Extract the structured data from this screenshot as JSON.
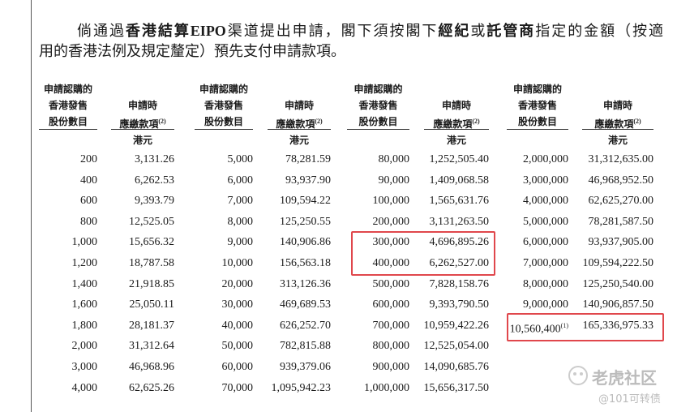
{
  "intro": {
    "lines": [
      [
        {
          "text": "倘通過",
          "bold": false
        },
        {
          "text": "香港結算EIPO",
          "bold": true
        },
        {
          "text": "渠道提出申請，閣下須按閣下",
          "bold": false
        },
        {
          "text": "經紀",
          "bold": true
        },
        {
          "text": "或",
          "bold": false
        },
        {
          "text": "託管商",
          "bold": true
        },
        {
          "text": "指定的金額（按適",
          "bold": false
        }
      ],
      [
        {
          "text": "用的香港法例及規定釐定）預先支付申請款項。",
          "bold": false
        }
      ]
    ]
  },
  "table": {
    "header_shares": [
      "申請認購的",
      "香港發售",
      "股份數目"
    ],
    "header_amount": [
      "申請時",
      "應繳款項"
    ],
    "amount_note": "(2)",
    "unit": "港元",
    "groups": [
      {
        "rows": [
          [
            "200",
            "3,131.26"
          ],
          [
            "400",
            "6,262.53"
          ],
          [
            "600",
            "9,393.79"
          ],
          [
            "800",
            "12,525.05"
          ],
          [
            "1,000",
            "15,656.32"
          ],
          [
            "1,200",
            "18,787.58"
          ],
          [
            "1,400",
            "21,918.85"
          ],
          [
            "1,600",
            "25,050.11"
          ],
          [
            "1,800",
            "28,181.37"
          ],
          [
            "2,000",
            "31,312.64"
          ],
          [
            "3,000",
            "46,968.96"
          ],
          [
            "4,000",
            "62,625.26"
          ]
        ]
      },
      {
        "rows": [
          [
            "5,000",
            "78,281.59"
          ],
          [
            "6,000",
            "93,937.90"
          ],
          [
            "7,000",
            "109,594.22"
          ],
          [
            "8,000",
            "125,250.55"
          ],
          [
            "9,000",
            "140,906.86"
          ],
          [
            "10,000",
            "156,563.18"
          ],
          [
            "20,000",
            "313,126.36"
          ],
          [
            "30,000",
            "469,689.53"
          ],
          [
            "40,000",
            "626,252.70"
          ],
          [
            "50,000",
            "782,815.88"
          ],
          [
            "60,000",
            "939,379.06"
          ],
          [
            "70,000",
            "1,095,942.23"
          ]
        ]
      },
      {
        "rows": [
          [
            "80,000",
            "1,252,505.40"
          ],
          [
            "90,000",
            "1,409,068.58"
          ],
          [
            "100,000",
            "1,565,631.76"
          ],
          [
            "200,000",
            "3,131,263.50"
          ],
          [
            "300,000",
            "4,696,895.26"
          ],
          [
            "400,000",
            "6,262,527.00"
          ],
          [
            "500,000",
            "7,828,158.76"
          ],
          [
            "600,000",
            "9,393,790.50"
          ],
          [
            "700,000",
            "10,959,422.26"
          ],
          [
            "800,000",
            "12,525,054.00"
          ],
          [
            "900,000",
            "14,090,685.76"
          ],
          [
            "1,000,000",
            "15,656,317.50"
          ]
        ]
      },
      {
        "rows": [
          [
            "2,000,000",
            "31,312,635.00"
          ],
          [
            "3,000,000",
            "46,968,952.50"
          ],
          [
            "4,000,000",
            "62,625,270.00"
          ],
          [
            "5,000,000",
            "78,281,587.50"
          ],
          [
            "6,000,000",
            "93,937,905.00"
          ],
          [
            "7,000,000",
            "109,594,222.50"
          ],
          [
            "8,000,000",
            "125,250,540.00"
          ],
          [
            "9,000,000",
            "140,906,857.50"
          ],
          [
            {
              "text": "10,560,400",
              "sup": "(1)"
            },
            "165,336,975.33"
          ]
        ]
      }
    ]
  },
  "watermark": {
    "brand": "老虎社区",
    "handle": "@101可转债"
  }
}
